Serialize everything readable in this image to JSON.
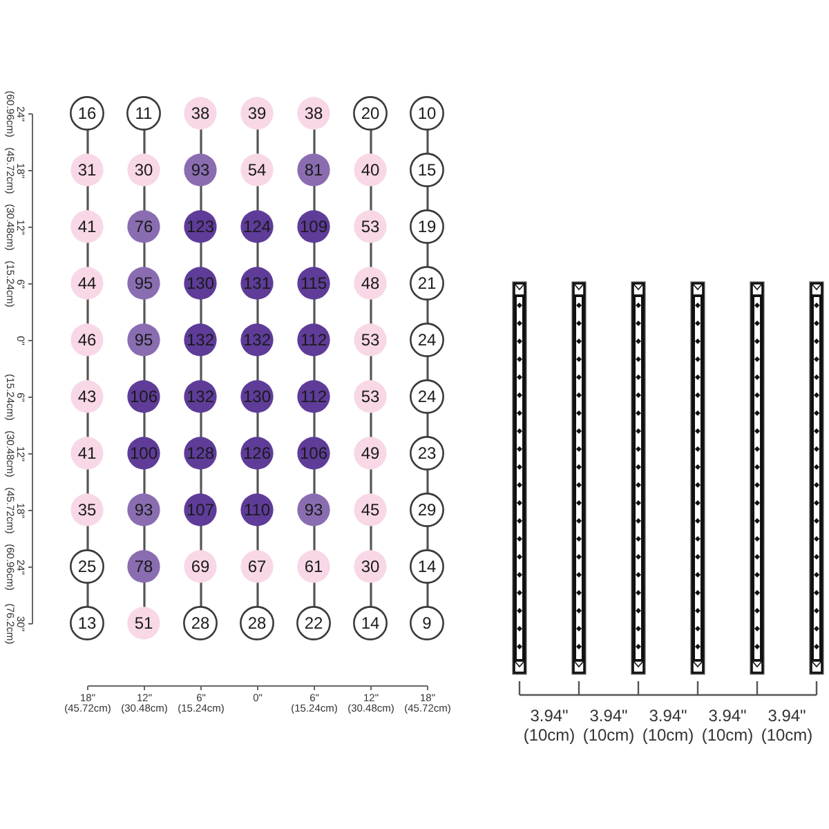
{
  "chart_data": {
    "type": "heatmap",
    "categories": [
      "18\" (45.72cm)",
      "12\" (30.48cm)",
      "6\" (15.24cm)",
      "0\"",
      "6\" (15.24cm)",
      "12\" (30.48cm)",
      "18\" (45.72cm)"
    ],
    "y_categories": [
      "24\" (60.96cm)",
      "18\" (45.72cm)",
      "12\" (30.48cm)",
      "6\" (15.24cm)",
      "0\"",
      "6\" (15.24cm)",
      "12\" (30.48cm)",
      "18\" (45.72cm)",
      "24\" (60.96cm)",
      "30\" (76.2cm)"
    ],
    "cells": [
      [
        16,
        11,
        38,
        39,
        38,
        20,
        10
      ],
      [
        31,
        30,
        93,
        54,
        81,
        40,
        15
      ],
      [
        41,
        76,
        123,
        124,
        109,
        53,
        19
      ],
      [
        44,
        95,
        130,
        131,
        115,
        48,
        21
      ],
      [
        46,
        95,
        132,
        132,
        112,
        53,
        24
      ],
      [
        43,
        106,
        132,
        130,
        112,
        53,
        24
      ],
      [
        41,
        100,
        128,
        126,
        106,
        49,
        23
      ],
      [
        35,
        93,
        107,
        110,
        93,
        45,
        29
      ],
      [
        25,
        78,
        69,
        67,
        61,
        30,
        14
      ],
      [
        13,
        51,
        28,
        28,
        22,
        14,
        9
      ]
    ],
    "colors": [
      [
        "#ffffff",
        "#ffffff",
        "#f8d8e6",
        "#f8d8e6",
        "#f8d8e6",
        "#ffffff",
        "#ffffff"
      ],
      [
        "#f8d8e6",
        "#f8d8e6",
        "#8a6db1",
        "#f8d8e6",
        "#8a6db1",
        "#f8d8e6",
        "#ffffff"
      ],
      [
        "#f8d8e6",
        "#8a6db1",
        "#5e3c98",
        "#5e3c98",
        "#5e3c98",
        "#f8d8e6",
        "#ffffff"
      ],
      [
        "#f8d8e6",
        "#8a6db1",
        "#5e3c98",
        "#5e3c98",
        "#5e3c98",
        "#f8d8e6",
        "#ffffff"
      ],
      [
        "#f8d8e6",
        "#8a6db1",
        "#5e3c98",
        "#5e3c98",
        "#5e3c98",
        "#f8d8e6",
        "#ffffff"
      ],
      [
        "#f8d8e6",
        "#5e3c98",
        "#5e3c98",
        "#5e3c98",
        "#5e3c98",
        "#f8d8e6",
        "#ffffff"
      ],
      [
        "#f8d8e6",
        "#5e3c98",
        "#5e3c98",
        "#5e3c98",
        "#5e3c98",
        "#f8d8e6",
        "#ffffff"
      ],
      [
        "#f8d8e6",
        "#8a6db1",
        "#5e3c98",
        "#5e3c98",
        "#8a6db1",
        "#f8d8e6",
        "#ffffff"
      ],
      [
        "#ffffff",
        "#8a6db1",
        "#f8d8e6",
        "#f8d8e6",
        "#f8d8e6",
        "#f8d8e6",
        "#ffffff"
      ],
      [
        "#ffffff",
        "#f8d8e6",
        "#ffffff",
        "#ffffff",
        "#ffffff",
        "#ffffff",
        "#ffffff"
      ]
    ],
    "data_labels": true,
    "grid": "x",
    "annotations": [
      "3.94\" (10cm)",
      "3.94\" (10cm)",
      "3.94\" (10cm)",
      "3.94\" (10cm)",
      "3.94\" (10cm)"
    ]
  }
}
